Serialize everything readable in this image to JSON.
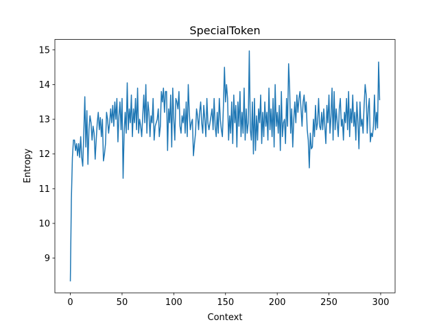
{
  "chart_data": {
    "type": "line",
    "title": "SpecialToken",
    "x_label": "Context",
    "y_label": "Entropy",
    "color": "#1f77b4",
    "x": [
      0,
      1,
      2,
      3,
      4,
      5,
      6,
      7,
      8,
      9,
      10,
      11,
      12,
      13,
      14,
      15,
      16,
      17,
      18,
      19,
      20,
      21,
      22,
      23,
      24,
      25,
      26,
      27,
      28,
      29,
      30,
      31,
      32,
      33,
      34,
      35,
      36,
      37,
      38,
      39,
      40,
      41,
      42,
      43,
      44,
      45,
      46,
      47,
      48,
      49,
      50,
      51,
      52,
      53,
      54,
      55,
      56,
      57,
      58,
      59,
      60,
      61,
      62,
      63,
      64,
      65,
      66,
      67,
      68,
      69,
      70,
      71,
      72,
      73,
      74,
      75,
      76,
      77,
      78,
      79,
      80,
      81,
      82,
      83,
      84,
      85,
      86,
      87,
      88,
      89,
      90,
      91,
      92,
      93,
      94,
      95,
      96,
      97,
      98,
      99,
      100,
      101,
      102,
      103,
      104,
      105,
      106,
      107,
      108,
      109,
      110,
      111,
      112,
      113,
      114,
      115,
      116,
      117,
      118,
      119,
      120,
      121,
      122,
      123,
      124,
      125,
      126,
      127,
      128,
      129,
      130,
      131,
      132,
      133,
      134,
      135,
      136,
      137,
      138,
      139,
      140,
      141,
      142,
      143,
      144,
      145,
      146,
      147,
      148,
      149,
      150,
      151,
      152,
      153,
      154,
      155,
      156,
      157,
      158,
      159,
      160,
      161,
      162,
      163,
      164,
      165,
      166,
      167,
      168,
      169,
      170,
      171,
      172,
      173,
      174,
      175,
      176,
      177,
      178,
      179,
      180,
      181,
      182,
      183,
      184,
      185,
      186,
      187,
      188,
      189,
      190,
      191,
      192,
      193,
      194,
      195,
      196,
      197,
      198,
      199,
      200,
      201,
      202,
      203,
      204,
      205,
      206,
      207,
      208,
      209,
      210,
      211,
      212,
      213,
      214,
      215,
      216,
      217,
      218,
      219,
      220,
      221,
      222,
      223,
      224,
      225,
      226,
      227,
      228,
      229,
      230,
      231,
      232,
      233,
      234,
      235,
      236,
      237,
      238,
      239,
      240,
      241,
      242,
      243,
      244,
      245,
      246,
      247,
      248,
      249,
      250,
      251,
      252,
      253,
      254,
      255,
      256,
      257,
      258,
      259,
      260,
      261,
      262,
      263,
      264,
      265,
      266,
      267,
      268,
      269,
      270,
      271,
      272,
      273,
      274,
      275,
      276,
      277,
      278,
      279,
      280,
      281,
      282,
      283,
      284,
      285,
      286,
      287,
      288,
      289,
      290,
      291,
      292,
      293,
      294,
      295,
      296,
      297,
      298,
      299
    ],
    "values": [
      8.33,
      10.7,
      11.9,
      12.4,
      12.4,
      12.1,
      12.3,
      11.95,
      12.3,
      11.9,
      12.5,
      11.9,
      11.65,
      12.6,
      13.65,
      12.2,
      13.25,
      11.7,
      12.7,
      13.1,
      12.9,
      12.4,
      12.8,
      12.6,
      11.85,
      12.4,
      12.9,
      13.2,
      12.7,
      13.05,
      12.5,
      13.0,
      11.8,
      12.0,
      12.3,
      13.2,
      13.0,
      12.6,
      12.9,
      13.3,
      12.9,
      13.4,
      12.8,
      13.5,
      13.0,
      13.6,
      12.35,
      13.1,
      13.5,
      12.7,
      13.6,
      11.3,
      12.6,
      13.2,
      12.6,
      14.05,
      12.7,
      13.3,
      12.9,
      13.7,
      12.5,
      13.3,
      12.9,
      13.6,
      12.7,
      13.9,
      12.6,
      13.0,
      12.8,
      12.5,
      13.1,
      13.7,
      12.9,
      14.0,
      12.6,
      13.5,
      13.2,
      12.5,
      13.1,
      12.9,
      13.6,
      12.4,
      12.8,
      12.9,
      13.0,
      13.3,
      12.5,
      12.8,
      13.8,
      13.5,
      13.9,
      13.2,
      13.8,
      13.8,
      12.1,
      13.3,
      12.9,
      13.7,
      12.2,
      13.9,
      13.0,
      12.4,
      13.6,
      13.5,
      13.3,
      13.8,
      12.8,
      12.6,
      13.1,
      12.9,
      13.3,
      12.6,
      13.5,
      12.5,
      14.0,
      13.2,
      12.7,
      12.9,
      13.0,
      11.95,
      12.3,
      12.6,
      13.3,
      13.1,
      12.7,
      13.2,
      13.5,
      12.9,
      12.6,
      13.4,
      13.0,
      12.5,
      13.6,
      12.9,
      12.7,
      12.9,
      13.1,
      13.3,
      12.7,
      13.6,
      12.8,
      12.5,
      13.2,
      12.6,
      13.6,
      13.0,
      12.7,
      12.5,
      13.4,
      14.5,
      13.5,
      14.0,
      13.6,
      12.4,
      13.1,
      12.6,
      13.5,
      12.3,
      13.7,
      12.9,
      13.4,
      12.2,
      13.5,
      12.8,
      13.8,
      12.5,
      13.2,
      12.6,
      13.9,
      12.4,
      13.3,
      12.6,
      12.9,
      14.97,
      12.7,
      12.4,
      13.5,
      12.0,
      13.6,
      12.1,
      13.1,
      12.4,
      13.3,
      12.9,
      13.7,
      12.3,
      13.2,
      12.5,
      13.5,
      12.8,
      13.2,
      12.4,
      13.9,
      12.7,
      13.3,
      12.5,
      13.6,
      12.2,
      14.0,
      12.8,
      13.2,
      12.6,
      13.4,
      12.1,
      13.8,
      12.5,
      12.9,
      13.0,
      12.3,
      13.6,
      12.8,
      14.6,
      13.9,
      12.6,
      13.3,
      12.2,
      13.0,
      13.5,
      12.9,
      13.7,
      13.2,
      13.6,
      13.8,
      13.3,
      12.8,
      13.5,
      13.7,
      13.2,
      13.5,
      12.7,
      12.4,
      11.6,
      12.6,
      12.15,
      12.2,
      13.0,
      12.5,
      13.4,
      12.7,
      12.9,
      13.6,
      12.8,
      12.7,
      13.2,
      12.7,
      13.3,
      12.8,
      12.3,
      13.4,
      12.9,
      13.7,
      12.6,
      13.1,
      13.9,
      12.4,
      13.8,
      12.7,
      13.3,
      12.9,
      12.5,
      13.3,
      13.6,
      12.8,
      13.0,
      12.4,
      13.2,
      12.9,
      13.6,
      12.7,
      13.8,
      12.5,
      13.3,
      12.9,
      13.7,
      12.8,
      13.2,
      12.4,
      13.5,
      12.9,
      12.15,
      13.5,
      12.8,
      13.0,
      12.6,
      13.4,
      14.0,
      13.7,
      12.6,
      13.3,
      13.6,
      12.35,
      12.6,
      12.5,
      12.8,
      13.7,
      12.7,
      13.2,
      12.75,
      14.65,
      13.55
    ],
    "xlim": [
      -14.95,
      313.95
    ],
    "xticks": [
      0,
      50,
      100,
      150,
      200,
      250,
      300
    ],
    "ylim": [
      8.0,
      15.3
    ],
    "yticks": [
      9,
      10,
      11,
      12,
      13,
      14,
      15
    ]
  }
}
